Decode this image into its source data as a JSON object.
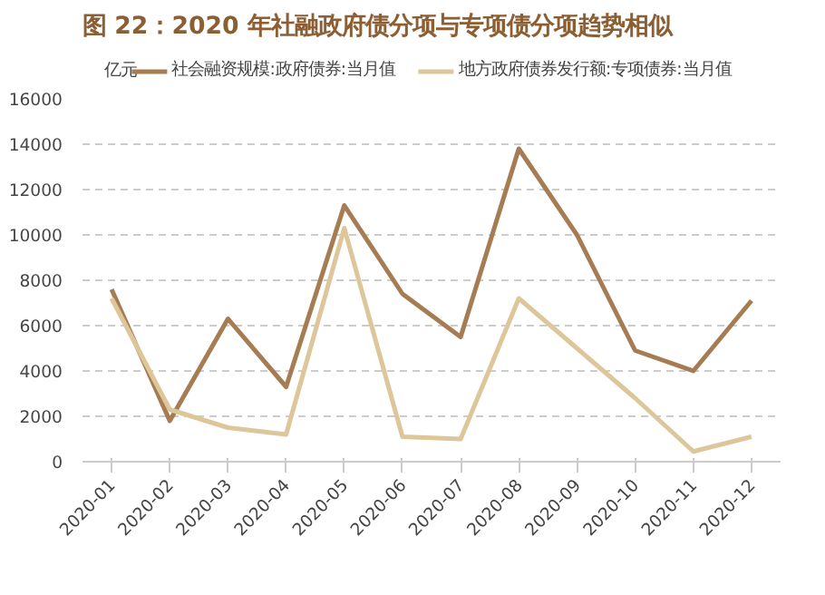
{
  "chart_data": {
    "type": "line",
    "title": "图 22：2020 年社融政府债分项与专项债分项趋势相似",
    "ylabel": "亿元",
    "categories": [
      "2020-01",
      "2020-02",
      "2020-03",
      "2020-04",
      "2020-05",
      "2020-06",
      "2020-07",
      "2020-08",
      "2020-09",
      "2020-10",
      "2020-11",
      "2020-12"
    ],
    "series": [
      {
        "name": "社会融资规模:政府债券:当月值",
        "color": "#a67c52",
        "values": [
          7600,
          1800,
          6300,
          3300,
          11300,
          7400,
          5500,
          13800,
          10000,
          4900,
          4000,
          7100
        ]
      },
      {
        "name": "地方政府债券发行额:专项债券:当月值",
        "color": "#dcc69a",
        "values": [
          7200,
          2300,
          1500,
          1200,
          10300,
          1100,
          1000,
          7200,
          5000,
          2800,
          450,
          1100
        ]
      }
    ],
    "ylim": [
      0,
      16000
    ],
    "yticks": [
      0,
      2000,
      4000,
      6000,
      8000,
      10000,
      12000,
      14000,
      16000
    ],
    "grid": "y",
    "legend": "top",
    "line_style": "solid",
    "marker": "none"
  }
}
